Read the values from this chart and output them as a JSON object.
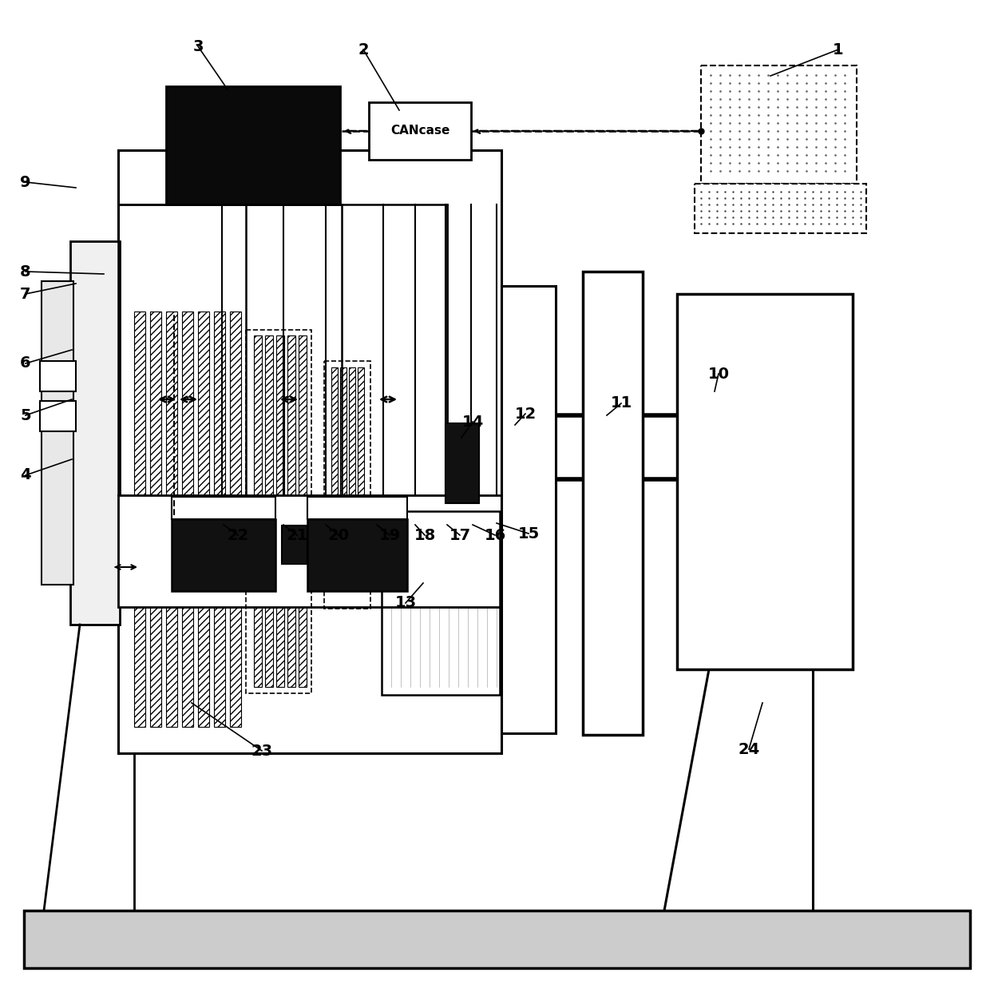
{
  "bg_color": "#ffffff",
  "lc": "#000000",
  "cancase_label": "CANcase",
  "numbers": [
    "1",
    "2",
    "3",
    "4",
    "5",
    "6",
    "7",
    "8",
    "9",
    "10",
    "11",
    "12",
    "13",
    "14",
    "15",
    "16",
    "17",
    "18",
    "19",
    "20",
    "21",
    "22",
    "23",
    "24"
  ],
  "labels": [
    [
      "1",
      1050,
      62,
      965,
      95
    ],
    [
      "2",
      455,
      62,
      500,
      138
    ],
    [
      "3",
      248,
      58,
      285,
      112
    ],
    [
      "4",
      32,
      595,
      90,
      575
    ],
    [
      "5",
      32,
      520,
      90,
      500
    ],
    [
      "6",
      32,
      455,
      90,
      438
    ],
    [
      "7",
      32,
      368,
      95,
      355
    ],
    [
      "8",
      32,
      340,
      130,
      343
    ],
    [
      "9",
      32,
      228,
      95,
      235
    ],
    [
      "10",
      900,
      468,
      895,
      490
    ],
    [
      "11",
      778,
      505,
      760,
      520
    ],
    [
      "12",
      658,
      518,
      645,
      532
    ],
    [
      "13",
      508,
      755,
      530,
      730
    ],
    [
      "14",
      592,
      528,
      578,
      548
    ],
    [
      "15",
      662,
      668,
      622,
      655
    ],
    [
      "16",
      620,
      670,
      592,
      657
    ],
    [
      "17",
      576,
      670,
      560,
      657
    ],
    [
      "18",
      532,
      670,
      520,
      657
    ],
    [
      "19",
      488,
      670,
      472,
      657
    ],
    [
      "20",
      424,
      670,
      408,
      657
    ],
    [
      "21",
      372,
      670,
      355,
      657
    ],
    [
      "22",
      298,
      670,
      280,
      657
    ],
    [
      "23",
      328,
      940,
      240,
      880
    ],
    [
      "24",
      938,
      938,
      955,
      880
    ]
  ]
}
